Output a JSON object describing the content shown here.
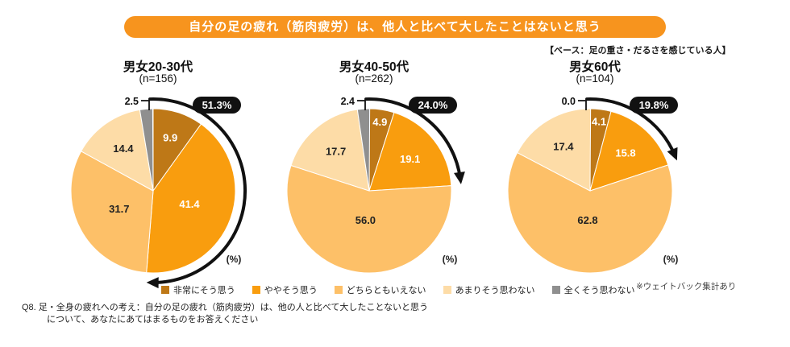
{
  "title": "自分の足の疲れ（筋肉疲労）は、他人と比べて大したことはないと思う",
  "base_note": "【ベース：足の重さ・だるさを感じている人】",
  "weight_note": "※ウェイトバック集計あり",
  "question_note_line1": "Q8. 足・全身の疲れへの考え：自分の足の疲れ（筋肉疲労）は、他の人と比べて大したことないと思う",
  "question_note_line2": "について、あなたにあてはまるものをお答えください",
  "percent_label": "(%)",
  "colors": {
    "banner": "#F7941E",
    "callout_bg": "#111111",
    "arrow": "#111111",
    "slice_strong_agree": "#BE7817",
    "slice_agree": "#F99D0E",
    "slice_neutral": "#FDC068",
    "slice_disagree": "#FDDCA7",
    "slice_strong_disagree": "#8F8F8F"
  },
  "legend": [
    {
      "label": "非常にそう思う",
      "color": "#BE7817"
    },
    {
      "label": "ややそう思う",
      "color": "#F99D0E"
    },
    {
      "label": "どちらともいえない",
      "color": "#FDC068"
    },
    {
      "label": "あまりそう思わない",
      "color": "#FDDCA7"
    },
    {
      "label": "全くそう思わない",
      "color": "#8F8F8F"
    }
  ],
  "chart_data": [
    {
      "type": "pie",
      "title": "男女20-30代",
      "n_label": "(n=156)",
      "callout": "51.3%",
      "callout_pct": 51.3,
      "categories": [
        "非常にそう思う",
        "ややそう思う",
        "どちらともいえない",
        "あまりそう思わない",
        "全くそう思わない"
      ],
      "values": [
        9.9,
        41.4,
        31.7,
        14.4,
        2.5
      ]
    },
    {
      "type": "pie",
      "title": "男女40-50代",
      "n_label": "(n=262)",
      "callout": "24.0%",
      "callout_pct": 24.0,
      "categories": [
        "非常にそう思う",
        "ややそう思う",
        "どちらともいえない",
        "あまりそう思わない",
        "全くそう思わない"
      ],
      "values": [
        4.9,
        19.1,
        56.0,
        17.7,
        2.4
      ]
    },
    {
      "type": "pie",
      "title": "男女60代",
      "n_label": "(n=104)",
      "callout": "19.8%",
      "callout_pct": 19.8,
      "categories": [
        "非常にそう思う",
        "ややそう思う",
        "どちらともいえない",
        "あまりそう思わない",
        "全くそう思わない"
      ],
      "values": [
        4.1,
        15.8,
        62.8,
        17.4,
        0.0
      ]
    }
  ]
}
